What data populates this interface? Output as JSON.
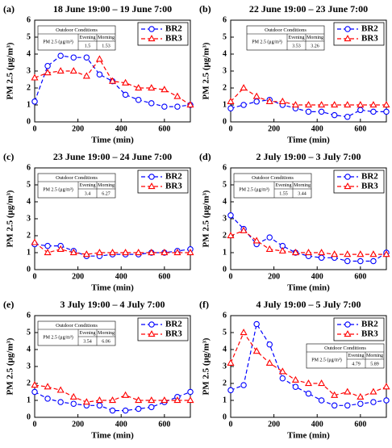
{
  "chart_data": [
    {
      "type": "line",
      "panel": "(a)",
      "title": "18 June 19:00 – 19 June 7:00",
      "xlabel": "Time (min)",
      "ylabel": "PM 2.5 (μg/m³)",
      "x": [
        0,
        60,
        120,
        180,
        240,
        300,
        360,
        420,
        480,
        540,
        600,
        660,
        720
      ],
      "xlim": [
        0,
        720
      ],
      "xticks": [
        0,
        200,
        400,
        600
      ],
      "ylim": [
        0,
        6
      ],
      "yticks": [
        0,
        1,
        2,
        3,
        4,
        5,
        6
      ],
      "legend": "upper right",
      "series": [
        {
          "name": "BR2",
          "color": "#0000ff",
          "values": [
            1.2,
            3.3,
            3.9,
            3.8,
            3.8,
            2.8,
            2.4,
            1.6,
            1.3,
            1.1,
            0.9,
            0.9,
            1.0
          ]
        },
        {
          "name": "BR3",
          "color": "#ff0000",
          "values": [
            2.6,
            2.9,
            3.0,
            3.0,
            2.7,
            3.7,
            2.4,
            2.3,
            2.0,
            2.0,
            1.9,
            1.5,
            1.0
          ]
        }
      ],
      "outdoor": {
        "title": "Outdoor Conditions",
        "columns": [
          "Evening",
          "Morning"
        ],
        "row_label": "PM 2.5 (μg/m³)",
        "values": [
          1.5,
          1.53
        ]
      }
    },
    {
      "type": "line",
      "panel": "(b)",
      "title": "22 June 19:00 – 23 June 7:00",
      "xlabel": "Time (min)",
      "ylabel": "PM 2.5 (μg/m³)",
      "x": [
        0,
        60,
        120,
        180,
        240,
        300,
        360,
        420,
        480,
        540,
        600,
        660,
        720
      ],
      "xlim": [
        0,
        720
      ],
      "xticks": [
        0,
        200,
        400,
        600
      ],
      "ylim": [
        0,
        6
      ],
      "yticks": [
        0,
        1,
        2,
        3,
        4,
        5,
        6
      ],
      "legend": "upper right",
      "series": [
        {
          "name": "BR2",
          "color": "#0000ff",
          "values": [
            0.8,
            1.0,
            1.2,
            1.3,
            1.0,
            0.8,
            0.6,
            0.6,
            0.4,
            0.3,
            0.7,
            0.6,
            0.6
          ]
        },
        {
          "name": "BR3",
          "color": "#ff0000",
          "values": [
            1.2,
            2.0,
            1.5,
            1.2,
            1.2,
            1.0,
            1.0,
            1.0,
            1.0,
            1.0,
            1.0,
            1.0,
            1.0
          ]
        }
      ],
      "outdoor": {
        "title": "Outdoor Conditions",
        "columns": [
          "Evening",
          "Morning"
        ],
        "row_label": "PM 2.5 (μg/m³)",
        "values": [
          3.53,
          3.26
        ]
      }
    },
    {
      "type": "line",
      "panel": "(c)",
      "title": "23 June 19:00 – 24 June 7:00",
      "xlabel": "Time (min)",
      "ylabel": "PM 2.5 (μg/m³)",
      "x": [
        0,
        60,
        120,
        180,
        240,
        300,
        360,
        420,
        480,
        540,
        600,
        660,
        720
      ],
      "xlim": [
        0,
        720
      ],
      "xticks": [
        0,
        200,
        400,
        600
      ],
      "ylim": [
        0,
        6
      ],
      "yticks": [
        0,
        1,
        2,
        3,
        4,
        5,
        6
      ],
      "legend": "upper right",
      "series": [
        {
          "name": "BR2",
          "color": "#0000ff",
          "values": [
            1.5,
            1.4,
            1.4,
            1.1,
            0.8,
            0.8,
            0.9,
            0.9,
            0.9,
            1.0,
            1.0,
            1.1,
            1.2
          ]
        },
        {
          "name": "BR3",
          "color": "#ff0000",
          "values": [
            1.6,
            1.0,
            1.2,
            1.0,
            0.9,
            1.0,
            1.0,
            1.0,
            1.0,
            1.0,
            1.0,
            1.0,
            1.0
          ]
        }
      ],
      "outdoor": {
        "title": "Outdoor Conditions",
        "columns": [
          "Evening",
          "Morning"
        ],
        "row_label": "PM 2.5 (μg/m³)",
        "values": [
          3.4,
          6.27
        ]
      }
    },
    {
      "type": "line",
      "panel": "(d)",
      "title": "2 July 19:00 – 3 July 7:00",
      "xlabel": "Time (min)",
      "ylabel": "PM 2.5 (μg/m³)",
      "x": [
        0,
        60,
        120,
        180,
        240,
        300,
        360,
        420,
        480,
        540,
        600,
        660,
        720
      ],
      "xlim": [
        0,
        720
      ],
      "xticks": [
        0,
        200,
        400,
        600
      ],
      "ylim": [
        0,
        6
      ],
      "yticks": [
        0,
        1,
        2,
        3,
        4,
        5,
        6
      ],
      "legend": "upper right",
      "series": [
        {
          "name": "BR2",
          "color": "#0000ff",
          "values": [
            3.2,
            2.4,
            1.5,
            1.9,
            1.4,
            1.0,
            0.8,
            0.7,
            0.7,
            0.5,
            0.5,
            0.5,
            1.0
          ]
        },
        {
          "name": "BR3",
          "color": "#ff0000",
          "values": [
            2.0,
            2.3,
            1.7,
            1.2,
            1.1,
            1.0,
            1.0,
            1.0,
            0.9,
            0.9,
            0.9,
            0.9,
            0.9
          ]
        }
      ],
      "outdoor": {
        "title": "Outdoor Conditions",
        "columns": [
          "Evening",
          "Morning"
        ],
        "row_label": "PM 2.5 (μg/m³)",
        "values": [
          1.55,
          3.44
        ]
      }
    },
    {
      "type": "line",
      "panel": "(e)",
      "title": "3 July 19:00 – 4 July 7:00",
      "xlabel": "Time (min)",
      "ylabel": "PM 2.5 (μg/m³)",
      "x": [
        0,
        60,
        120,
        180,
        240,
        300,
        360,
        420,
        480,
        540,
        600,
        660,
        720
      ],
      "xlim": [
        0,
        720
      ],
      "xticks": [
        0,
        200,
        400,
        600
      ],
      "ylim": [
        0,
        6
      ],
      "yticks": [
        0,
        1,
        2,
        3,
        4,
        5,
        6
      ],
      "legend": "upper right",
      "series": [
        {
          "name": "BR2",
          "color": "#0000ff",
          "values": [
            1.5,
            1.1,
            0.9,
            0.8,
            0.7,
            0.7,
            0.4,
            0.4,
            0.5,
            0.6,
            0.9,
            1.2,
            1.5
          ]
        },
        {
          "name": "BR3",
          "color": "#ff0000",
          "values": [
            1.9,
            1.8,
            1.6,
            1.2,
            0.9,
            1.0,
            1.0,
            1.3,
            1.0,
            1.0,
            1.0,
            1.0,
            1.0
          ]
        }
      ],
      "outdoor": {
        "title": "Outdoor Conditions",
        "columns": [
          "Evening",
          "Morning"
        ],
        "row_label": "PM 2.5 (μg/m³)",
        "values": [
          3.54,
          6.06
        ]
      }
    },
    {
      "type": "line",
      "panel": "(f)",
      "title": "4 July 19:00 – 5 July 7:00",
      "xlabel": "Time (min)",
      "ylabel": "PM 2.5 (μg/m³)",
      "x": [
        0,
        60,
        120,
        180,
        240,
        300,
        360,
        420,
        480,
        540,
        600,
        660,
        720
      ],
      "xlim": [
        0,
        720
      ],
      "xticks": [
        0,
        200,
        400,
        600
      ],
      "ylim": [
        0,
        6
      ],
      "yticks": [
        0,
        1,
        2,
        3,
        4,
        5,
        6
      ],
      "legend": "upper right",
      "series": [
        {
          "name": "BR2",
          "color": "#0000ff",
          "values": [
            1.6,
            1.9,
            5.5,
            4.3,
            2.3,
            1.8,
            1.4,
            1.0,
            0.7,
            0.7,
            0.8,
            0.9,
            1.0
          ]
        },
        {
          "name": "BR3",
          "color": "#ff0000",
          "values": [
            3.2,
            5.0,
            3.9,
            3.2,
            2.7,
            2.2,
            2.0,
            2.0,
            1.3,
            1.5,
            1.2,
            1.5,
            1.8
          ]
        }
      ],
      "outdoor": {
        "title": "Outdoor Conditions",
        "columns": [
          "Evening",
          "Morning"
        ],
        "row_label": "PM 2.5 (μg/m³)",
        "values": [
          4.79,
          5.89
        ]
      }
    }
  ]
}
